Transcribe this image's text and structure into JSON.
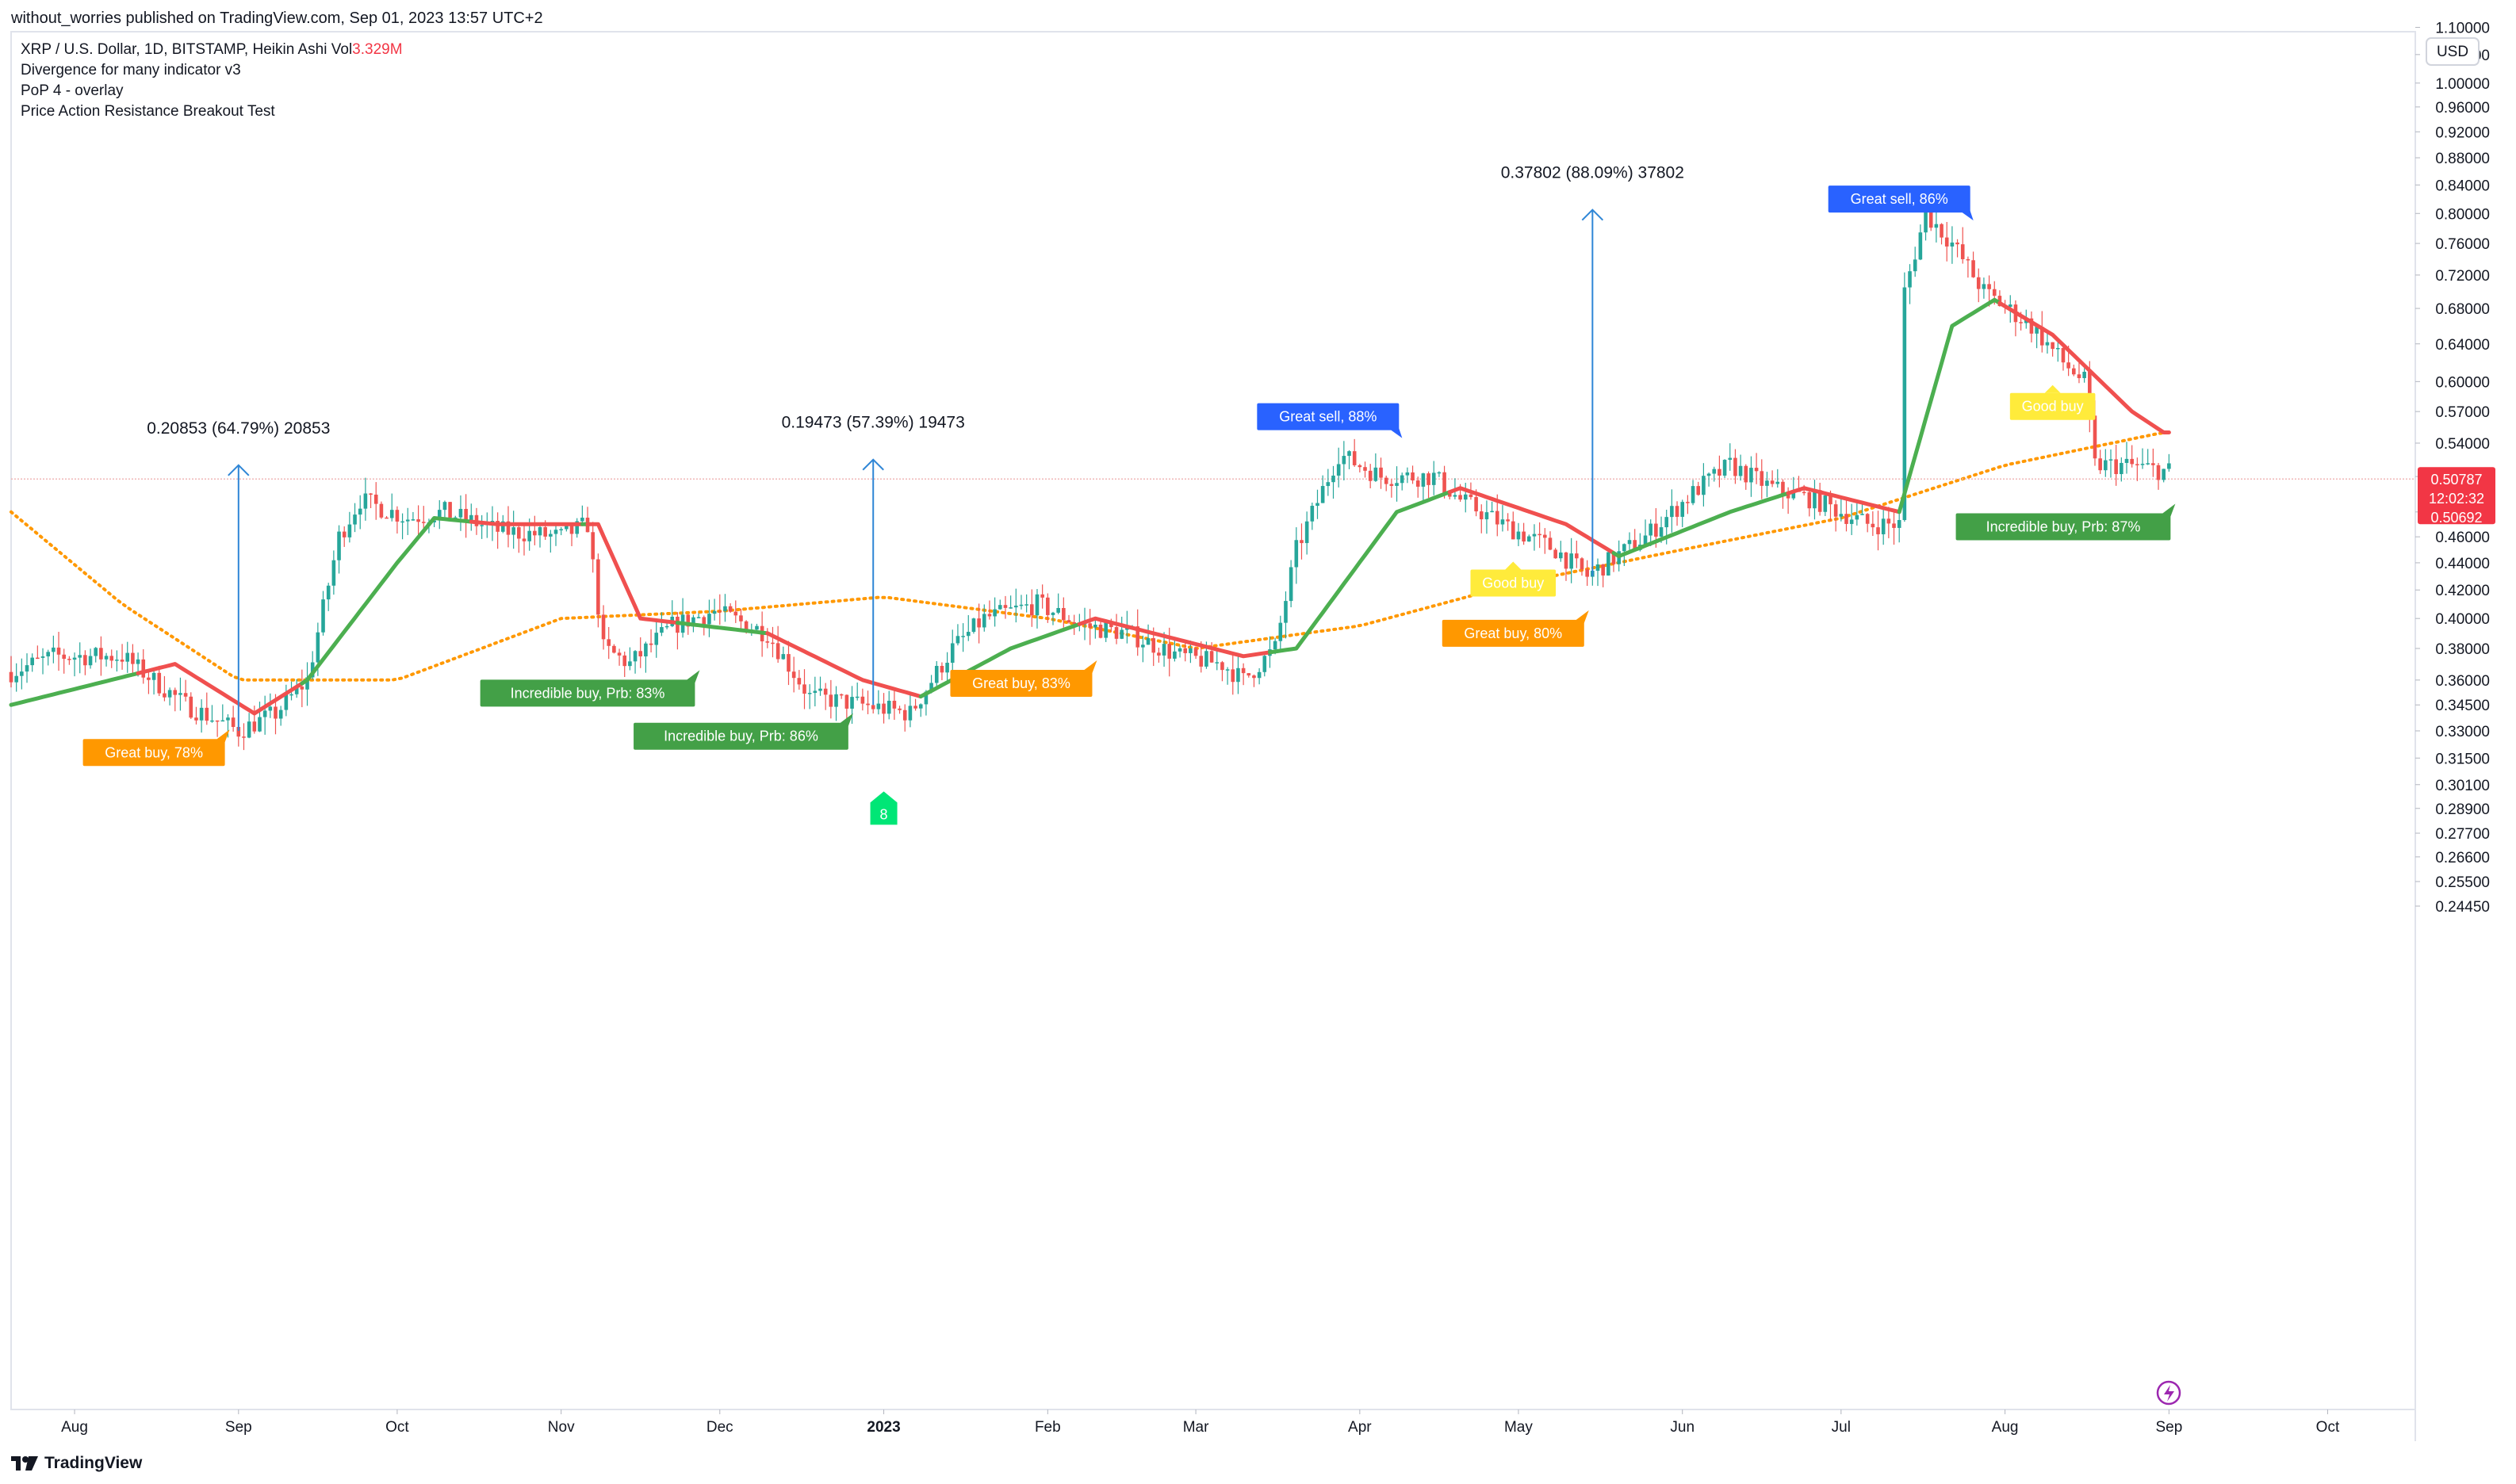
{
  "header": {
    "published": "without_worries published on TradingView.com, Sep 01, 2023 13:57 UTC+2"
  },
  "legend": {
    "symbol": "XRP / U.S. Dollar, 1D, BITSTAMP, Heikin Ashi",
    "vol_label": "Vol",
    "vol_value": "3.329M",
    "indicators": [
      "Divergence for many indicator v3",
      "PoP 4 - overlay",
      "Price Action Resistance Breakout Test"
    ]
  },
  "currency": "USD",
  "footer": {
    "brand": "TradingView"
  },
  "chart_data": {
    "type": "candlestick",
    "scale": "log",
    "y_ticks": [
      "1.10000",
      "1.05000",
      "1.00000",
      "0.96000",
      "0.92000",
      "0.88000",
      "0.84000",
      "0.80000",
      "0.76000",
      "0.72000",
      "0.68000",
      "0.64000",
      "0.60000",
      "0.57000",
      "0.54000",
      "0.51000",
      "0.48000",
      "0.46000",
      "0.44000",
      "0.42000",
      "0.40000",
      "0.38000",
      "0.36000",
      "0.34500",
      "0.33000",
      "0.31500",
      "0.30100",
      "0.28900",
      "0.27700",
      "0.26600",
      "0.25500",
      "0.24450"
    ],
    "x_ticks": [
      {
        "label": "Aug",
        "date": "2022-08-01"
      },
      {
        "label": "Sep",
        "date": "2022-09-01"
      },
      {
        "label": "Oct",
        "date": "2022-10-01"
      },
      {
        "label": "Nov",
        "date": "2022-11-01"
      },
      {
        "label": "Dec",
        "date": "2022-12-01"
      },
      {
        "label": "2023",
        "date": "2023-01-01",
        "bold": true
      },
      {
        "label": "Feb",
        "date": "2023-02-01"
      },
      {
        "label": "Mar",
        "date": "2023-03-01"
      },
      {
        "label": "Apr",
        "date": "2023-04-01"
      },
      {
        "label": "May",
        "date": "2023-05-01"
      },
      {
        "label": "Jun",
        "date": "2023-06-01"
      },
      {
        "label": "Jul",
        "date": "2023-07-01"
      },
      {
        "label": "Aug",
        "date": "2023-08-01"
      },
      {
        "label": "Sep",
        "date": "2023-09-01"
      },
      {
        "label": "Oct",
        "date": "2023-10-01"
      }
    ],
    "price_anchors": [
      [
        "2022-07-20",
        0.365
      ],
      [
        "2022-07-28",
        0.375
      ],
      [
        "2022-08-10",
        0.375
      ],
      [
        "2022-08-22",
        0.345
      ],
      [
        "2022-09-01",
        0.33
      ],
      [
        "2022-09-08",
        0.34
      ],
      [
        "2022-09-14",
        0.36
      ],
      [
        "2022-09-20",
        0.46
      ],
      [
        "2022-09-24",
        0.49
      ],
      [
        "2022-10-03",
        0.475
      ],
      [
        "2022-10-10",
        0.48
      ],
      [
        "2022-10-20",
        0.465
      ],
      [
        "2022-11-01",
        0.46
      ],
      [
        "2022-11-06",
        0.47
      ],
      [
        "2022-11-09",
        0.38
      ],
      [
        "2022-11-14",
        0.37
      ],
      [
        "2022-11-22",
        0.395
      ],
      [
        "2022-11-30",
        0.405
      ],
      [
        "2022-12-10",
        0.39
      ],
      [
        "2022-12-18",
        0.35
      ],
      [
        "2022-12-28",
        0.345
      ],
      [
        "2023-01-06",
        0.34
      ],
      [
        "2023-01-14",
        0.38
      ],
      [
        "2023-01-20",
        0.4
      ],
      [
        "2023-01-30",
        0.41
      ],
      [
        "2023-02-08",
        0.395
      ],
      [
        "2023-02-16",
        0.39
      ],
      [
        "2023-02-26",
        0.375
      ],
      [
        "2023-03-06",
        0.37
      ],
      [
        "2023-03-10",
        0.36
      ],
      [
        "2023-03-16",
        0.38
      ],
      [
        "2023-03-20",
        0.45
      ],
      [
        "2023-03-28",
        0.53
      ],
      [
        "2023-04-05",
        0.51
      ],
      [
        "2023-04-15",
        0.51
      ],
      [
        "2023-04-20",
        0.49
      ],
      [
        "2023-04-28",
        0.47
      ],
      [
        "2023-05-08",
        0.45
      ],
      [
        "2023-05-14",
        0.43
      ],
      [
        "2023-05-25",
        0.46
      ],
      [
        "2023-06-04",
        0.5
      ],
      [
        "2023-06-10",
        0.52
      ],
      [
        "2023-06-18",
        0.5
      ],
      [
        "2023-06-26",
        0.49
      ],
      [
        "2023-07-06",
        0.47
      ],
      [
        "2023-07-12",
        0.47
      ],
      [
        "2023-07-13",
        0.7
      ],
      [
        "2023-07-17",
        0.8
      ],
      [
        "2023-07-22",
        0.76
      ],
      [
        "2023-07-28",
        0.7
      ],
      [
        "2023-08-06",
        0.66
      ],
      [
        "2023-08-12",
        0.62
      ],
      [
        "2023-08-16",
        0.6
      ],
      [
        "2023-08-18",
        0.52
      ],
      [
        "2023-08-24",
        0.52
      ],
      [
        "2023-08-31",
        0.515
      ]
    ],
    "ma_fast_anchors": [
      [
        "2022-07-20",
        0.345
      ],
      [
        "2022-08-20",
        0.37
      ],
      [
        "2022-09-04",
        0.34
      ],
      [
        "2022-09-14",
        0.36
      ],
      [
        "2022-10-01",
        0.44
      ],
      [
        "2022-10-08",
        0.475
      ],
      [
        "2022-10-20",
        0.47
      ],
      [
        "2022-11-08",
        0.47
      ],
      [
        "2022-11-16",
        0.4
      ],
      [
        "2022-12-10",
        0.39
      ],
      [
        "2022-12-28",
        0.36
      ],
      [
        "2023-01-08",
        0.35
      ],
      [
        "2023-01-25",
        0.38
      ],
      [
        "2023-02-10",
        0.4
      ],
      [
        "2023-03-10",
        0.375
      ],
      [
        "2023-03-20",
        0.38
      ],
      [
        "2023-04-08",
        0.48
      ],
      [
        "2023-04-20",
        0.5
      ],
      [
        "2023-05-10",
        0.47
      ],
      [
        "2023-05-20",
        0.445
      ],
      [
        "2023-06-10",
        0.48
      ],
      [
        "2023-06-24",
        0.5
      ],
      [
        "2023-07-12",
        0.48
      ],
      [
        "2023-07-22",
        0.66
      ],
      [
        "2023-07-30",
        0.69
      ],
      [
        "2023-08-10",
        0.65
      ],
      [
        "2023-08-25",
        0.57
      ],
      [
        "2023-08-31",
        0.55
      ]
    ],
    "ma_slow_anchors": [
      [
        "2022-07-20",
        0.48
      ],
      [
        "2022-08-10",
        0.41
      ],
      [
        "2022-09-01",
        0.36
      ],
      [
        "2022-10-01",
        0.36
      ],
      [
        "2022-11-01",
        0.4
      ],
      [
        "2022-12-01",
        0.405
      ],
      [
        "2023-01-01",
        0.415
      ],
      [
        "2023-02-01",
        0.4
      ],
      [
        "2023-03-01",
        0.38
      ],
      [
        "2023-04-01",
        0.395
      ],
      [
        "2023-05-01",
        0.425
      ],
      [
        "2023-06-01",
        0.45
      ],
      [
        "2023-07-01",
        0.475
      ],
      [
        "2023-08-01",
        0.52
      ],
      [
        "2023-08-31",
        0.55
      ]
    ],
    "current_price": {
      "value": "0.50787",
      "countdown": "12:02:32",
      "low": "0.50692"
    },
    "measurements": [
      {
        "text": "0.20853 (64.79%) 20853",
        "date": "2022-09-01",
        "from": 0.33,
        "to": 0.52
      },
      {
        "text": "0.19473 (57.39%) 19473",
        "date": "2022-12-30",
        "from": 0.345,
        "to": 0.525
      },
      {
        "text": "0.37802 (88.09%) 37802",
        "date": "2023-05-15",
        "from": 0.43,
        "to": 0.805
      }
    ],
    "signals": [
      {
        "text": "Great buy,  78%",
        "kind": "great-buy",
        "date": "2022-08-16",
        "price": 0.318
      },
      {
        "text": "Incredible buy, Prb: 83%",
        "kind": "incredible-buy",
        "date": "2022-11-06",
        "price": 0.352
      },
      {
        "text": "Incredible buy, Prb: 86%",
        "kind": "incredible-buy",
        "date": "2022-12-05",
        "price": 0.327
      },
      {
        "text": "Great buy,  83%",
        "kind": "great-buy",
        "date": "2023-01-27",
        "price": 0.358
      },
      {
        "text": "Great sell, 88%",
        "kind": "great-sell",
        "date": "2023-03-26",
        "price": 0.565
      },
      {
        "text": "Good buy",
        "kind": "good-buy",
        "date": "2023-04-30",
        "price": 0.425
      },
      {
        "text": "Great buy,  80%",
        "kind": "great-buy",
        "date": "2023-04-30",
        "price": 0.39
      },
      {
        "text": "Great sell, 86%",
        "kind": "great-sell",
        "date": "2023-07-12",
        "price": 0.82
      },
      {
        "text": "Incredible buy, Prb: 87%",
        "kind": "incredible-buy",
        "date": "2023-08-12",
        "price": 0.468
      },
      {
        "text": "Good buy",
        "kind": "good-buy",
        "date": "2023-08-10",
        "price": 0.575
      }
    ],
    "marker": {
      "text": "8",
      "date": "2023-01-01",
      "price": 0.288
    },
    "colors": {
      "up": "#26a69a",
      "down": "#ef5350",
      "ma_fast_up": "#4caf50",
      "ma_fast_down": "#f0504f",
      "ma_slow": "#ff9800",
      "great_buy": "#ff9800",
      "incredible_buy": "#43a047",
      "great_sell": "#2962ff",
      "good_buy": "#ffeb3b",
      "good_buy_text": "#f9a825",
      "measure": "#2f86d6",
      "marker": "#00e676"
    }
  }
}
